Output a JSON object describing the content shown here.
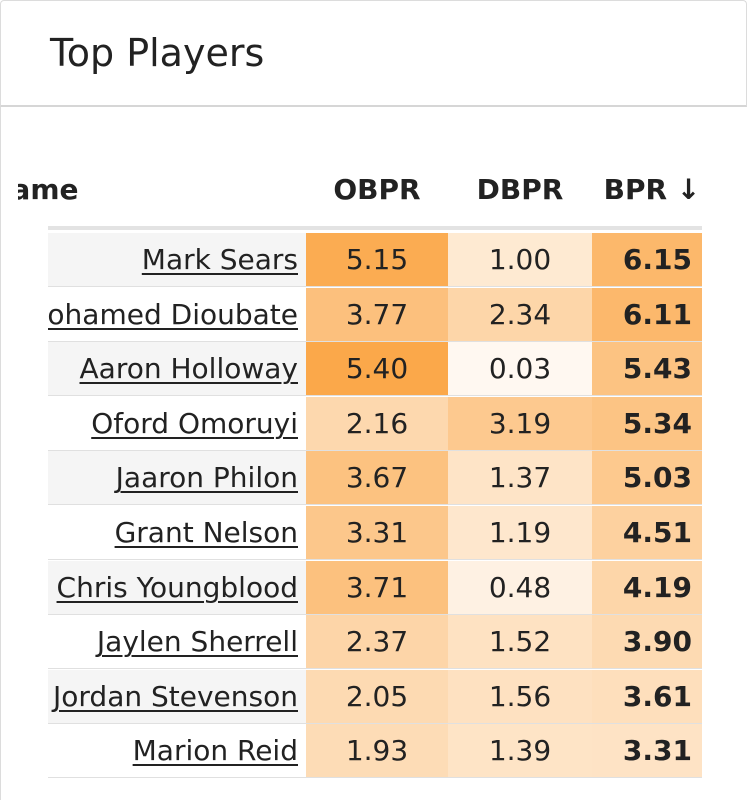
{
  "card": {
    "title": "Top Players"
  },
  "table": {
    "columns": {
      "name": "Name",
      "obpr": "OBPR",
      "dbpr": "DBPR",
      "bpr": "BPR",
      "sort_indicator": "↓"
    },
    "rows": [
      {
        "name": "Mark Sears",
        "obpr": "5.15",
        "dbpr": "1.00",
        "bpr": "6.15"
      },
      {
        "name": "Mohamed Dioubate",
        "obpr": "3.77",
        "dbpr": "2.34",
        "bpr": "6.11"
      },
      {
        "name": "Aaron Holloway",
        "obpr": "5.40",
        "dbpr": "0.03",
        "bpr": "5.43"
      },
      {
        "name": "Oford Omoruyi",
        "obpr": "2.16",
        "dbpr": "3.19",
        "bpr": "5.34"
      },
      {
        "name": "Jaaron Philon",
        "obpr": "3.67",
        "dbpr": "1.37",
        "bpr": "5.03"
      },
      {
        "name": "Grant Nelson",
        "obpr": "3.31",
        "dbpr": "1.19",
        "bpr": "4.51"
      },
      {
        "name": "Chris Youngblood",
        "obpr": "3.71",
        "dbpr": "0.48",
        "bpr": "4.19"
      },
      {
        "name": "Jaylen Sherrell",
        "obpr": "2.37",
        "dbpr": "1.52",
        "bpr": "3.90"
      },
      {
        "name": "Jordan Stevenson",
        "obpr": "2.05",
        "dbpr": "1.56",
        "bpr": "3.61"
      },
      {
        "name": "Marion Reid",
        "obpr": "1.93",
        "dbpr": "1.39",
        "bpr": "3.31"
      }
    ]
  },
  "colors": {
    "heat_low": "#ffffff",
    "heat_high": "#fba84a",
    "row_alt": "#f5f5f5"
  }
}
